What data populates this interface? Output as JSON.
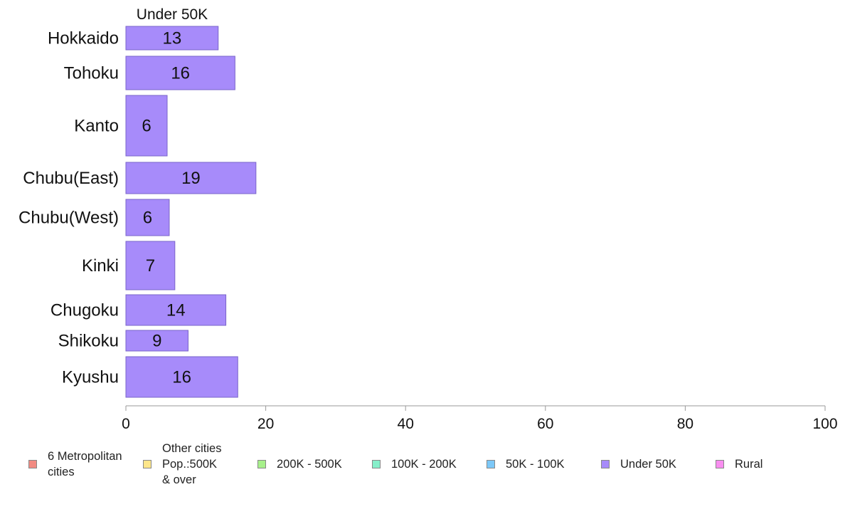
{
  "chart_data": {
    "type": "bar",
    "orientation": "horizontal",
    "title": "Under 50K",
    "categories": [
      "Hokkaido",
      "Tohoku",
      "Kanto",
      "Chubu(East)",
      "Chubu(West)",
      "Kinki",
      "Chugoku",
      "Shikoku",
      "Kyushu"
    ],
    "series": [
      {
        "name": "Under 50K",
        "color": "#a78bfa",
        "values": [
          13,
          16,
          6,
          19,
          6,
          7,
          14,
          9,
          16
        ],
        "display_values": [
          13.2,
          15.6,
          5.9,
          18.6,
          6.2,
          7.0,
          14.3,
          8.9,
          16.0
        ]
      }
    ],
    "xlim": [
      0,
      100
    ],
    "xticks": [
      "0",
      "20",
      "40",
      "60",
      "80",
      "100"
    ],
    "grid": false,
    "legend_position": "bottom"
  },
  "legend": [
    {
      "label": "6 Metropolitan\ncities",
      "color": "#f28b82"
    },
    {
      "label": "Other cities\nPop.:500K\n& over",
      "color": "#fde68a"
    },
    {
      "label": "200K - 500K",
      "color": "#a7f08b"
    },
    {
      "label": "100K - 200K",
      "color": "#86efca"
    },
    {
      "label": "50K - 100K",
      "color": "#7cc8f8"
    },
    {
      "label": "Under 50K",
      "color": "#a78bfa"
    },
    {
      "label": "Rural",
      "color": "#f98ef0"
    }
  ]
}
